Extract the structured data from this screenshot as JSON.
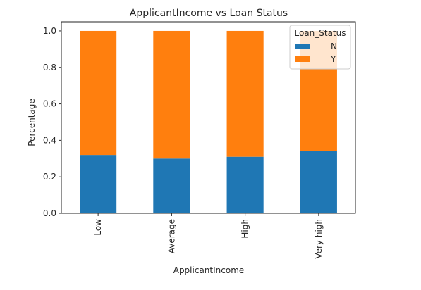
{
  "chart_data": {
    "type": "bar",
    "stacked": true,
    "title": "ApplicantIncome vs Loan Status",
    "xlabel": "ApplicantIncome",
    "ylabel": "Percentage",
    "categories": [
      "Low",
      "Average",
      "High",
      "Very high"
    ],
    "series": [
      {
        "name": "N",
        "color": "#1f77b4",
        "values": [
          0.32,
          0.3,
          0.31,
          0.34
        ]
      },
      {
        "name": "Y",
        "color": "#ff7f0e",
        "values": [
          0.68,
          0.7,
          0.69,
          0.66
        ]
      }
    ],
    "ylim": [
      0,
      1.05
    ],
    "yticks": [
      "0.0",
      "0.2",
      "0.4",
      "0.6",
      "0.8",
      "1.0"
    ],
    "legend": {
      "title": "Loan_Status",
      "placement": "top-right"
    },
    "grid": false
  }
}
